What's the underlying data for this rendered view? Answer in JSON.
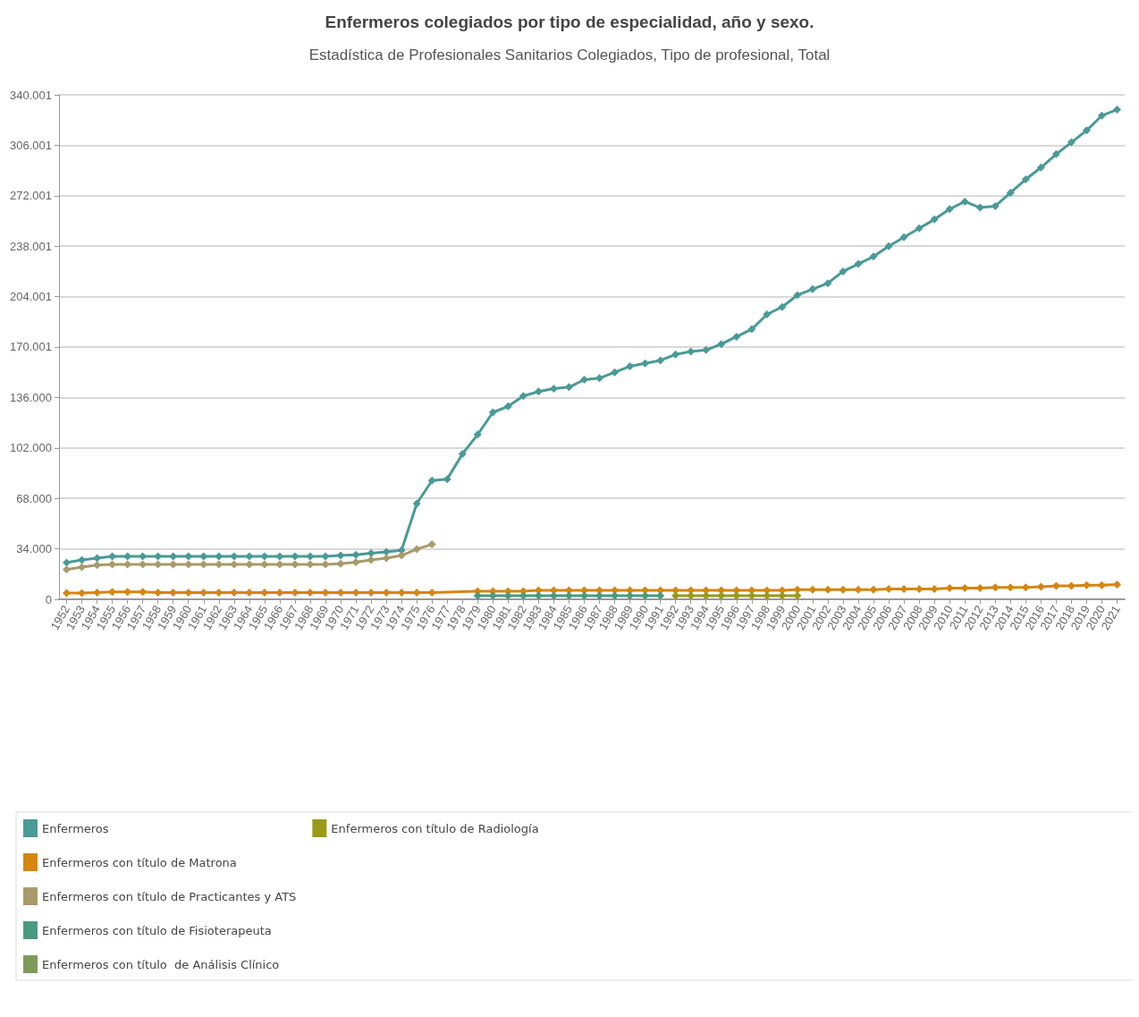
{
  "chart_data": {
    "type": "line",
    "title": "Enfermeros colegiados por tipo de especialidad, año y sexo.",
    "subtitle": "Estadística de Profesionales Sanitarios Colegiados, Tipo de profesional, Total",
    "categories": [
      "1952",
      "1953",
      "1954",
      "1955",
      "1956",
      "1957",
      "1958",
      "1959",
      "1960",
      "1961",
      "1962",
      "1963",
      "1964",
      "1965",
      "1966",
      "1967",
      "1968",
      "1969",
      "1970",
      "1971",
      "1972",
      "1973",
      "1974",
      "1975",
      "1976",
      "1977",
      "1978",
      "1979",
      "1980",
      "1981",
      "1982",
      "1983",
      "1984",
      "1985",
      "1986",
      "1987",
      "1988",
      "1989",
      "1990",
      "1991",
      "1992",
      "1993",
      "1994",
      "1995",
      "1996",
      "1997",
      "1998",
      "1999",
      "2000",
      "2001",
      "2002",
      "2003",
      "2004",
      "2005",
      "2006",
      "2007",
      "2008",
      "2009",
      "2010",
      "2011",
      "2012",
      "2013",
      "2014",
      "2015",
      "2016",
      "2017",
      "2018",
      "2019",
      "2020",
      "2021"
    ],
    "series": [
      {
        "name": "Enfermeros",
        "color": "#4a9a96",
        "values": [
          24700,
          26500,
          27700,
          29000,
          29000,
          29000,
          29000,
          29000,
          29000,
          29000,
          29000,
          29000,
          29000,
          29000,
          29000,
          29000,
          29000,
          29000,
          29500,
          30000,
          31000,
          32000,
          33000,
          64500,
          80000,
          81000,
          98000,
          111000,
          126000,
          130000,
          137000,
          140000,
          142000,
          143000,
          148000,
          149000,
          153000,
          157000,
          159000,
          161000,
          165000,
          167000,
          168000,
          172000,
          177000,
          182000,
          192000,
          197000,
          205000,
          209000,
          213000,
          221000,
          226000,
          231000,
          238000,
          244000,
          250000,
          256000,
          263000,
          268000,
          264000,
          265000,
          274000,
          283000,
          291000,
          300000,
          308000,
          316000,
          326000,
          330000
        ]
      },
      {
        "name": "Enfermeros con título de Matrona",
        "color": "#d4860f",
        "values": [
          4200,
          4200,
          4500,
          5000,
          5000,
          5000,
          4500,
          4500,
          4500,
          4500,
          4500,
          4500,
          4500,
          4500,
          4500,
          4500,
          4500,
          4500,
          4500,
          4500,
          4500,
          4500,
          4500,
          4500,
          4500,
          null,
          null,
          5500,
          5500,
          5500,
          5500,
          6000,
          6000,
          6000,
          6000,
          6000,
          6000,
          6000,
          6000,
          6000,
          6000,
          6000,
          6000,
          6000,
          6000,
          6000,
          6000,
          6000,
          6500,
          6500,
          6500,
          6500,
          6500,
          6500,
          7000,
          7000,
          7000,
          7000,
          7500,
          7500,
          7500,
          8000,
          8000,
          8000,
          8500,
          9000,
          9000,
          9500,
          9500,
          10000
        ]
      },
      {
        "name": "Enfermeros con título de Practicantes y ATS",
        "color": "#a89a6a",
        "values": [
          20000,
          21700,
          23000,
          23500,
          23500,
          23500,
          23500,
          23500,
          23500,
          23500,
          23500,
          23500,
          23500,
          23500,
          23500,
          23500,
          23500,
          23500,
          24000,
          25000,
          26500,
          27700,
          29500,
          33800,
          37000,
          null,
          null,
          null,
          null,
          null,
          null,
          null,
          null,
          null,
          null,
          null,
          null,
          null,
          null,
          null,
          null,
          null,
          null,
          null,
          null,
          null,
          null,
          null,
          null,
          null,
          null,
          null,
          null,
          null,
          null,
          null,
          null,
          null,
          null,
          null,
          null,
          null,
          null,
          null,
          null,
          null,
          null,
          null,
          null,
          null
        ]
      },
      {
        "name": "Enfermeros con título de Fisioterapeuta",
        "color": "#4a9a80",
        "values": [
          null,
          null,
          null,
          null,
          null,
          null,
          null,
          null,
          null,
          null,
          null,
          null,
          null,
          null,
          null,
          null,
          null,
          null,
          null,
          null,
          null,
          null,
          null,
          null,
          null,
          null,
          null,
          2400,
          2400,
          2400,
          2400,
          2400,
          2400,
          2400,
          2400,
          2400,
          2400,
          2400,
          2400,
          2400,
          null,
          null,
          null,
          null,
          null,
          null,
          null,
          null,
          null,
          null,
          null,
          null,
          null,
          null,
          null,
          null,
          null,
          null,
          null,
          null,
          null,
          null,
          null,
          null,
          null,
          null,
          null,
          null,
          null,
          null
        ]
      },
      {
        "name": "Enfermeros con título  de Análisis Clínico",
        "color": "#7d9a5a",
        "values": [
          null,
          null,
          null,
          null,
          null,
          null,
          null,
          null,
          null,
          null,
          null,
          null,
          null,
          null,
          null,
          null,
          null,
          null,
          null,
          null,
          null,
          null,
          null,
          null,
          null,
          null,
          null,
          null,
          null,
          null,
          null,
          null,
          null,
          null,
          null,
          null,
          null,
          null,
          null,
          null,
          null,
          null,
          null,
          null,
          null,
          null,
          null,
          null,
          null,
          null,
          null,
          null,
          null,
          null,
          null,
          null,
          null,
          null,
          null,
          null,
          null,
          null,
          null,
          null,
          null,
          null,
          null,
          null,
          null,
          null
        ]
      },
      {
        "name": "Enfermeros con título de Radiología",
        "color": "#9a9a1a",
        "values": [
          null,
          null,
          null,
          null,
          null,
          null,
          null,
          null,
          null,
          null,
          null,
          null,
          null,
          null,
          null,
          null,
          null,
          null,
          null,
          null,
          null,
          null,
          null,
          null,
          null,
          null,
          null,
          null,
          null,
          null,
          null,
          null,
          null,
          null,
          null,
          null,
          null,
          null,
          null,
          null,
          2400,
          2400,
          2400,
          2400,
          2400,
          2400,
          2400,
          2400,
          2400,
          null,
          null,
          null,
          null,
          null,
          null,
          null,
          null,
          null,
          null,
          null,
          null,
          null,
          null,
          null,
          null,
          null,
          null,
          null,
          null,
          null
        ]
      }
    ],
    "ylim": [
      0,
      340001
    ],
    "yticks": [
      0,
      {
        "value": 34000,
        "label": "34.000"
      },
      {
        "value": 68000,
        "label": "68.000"
      },
      {
        "value": 102000,
        "label": "102.000"
      },
      {
        "value": 136000,
        "label": "136.000"
      },
      {
        "value": 170001,
        "label": "170.001"
      },
      {
        "value": 204001,
        "label": "204.001"
      },
      {
        "value": 238001,
        "label": "238.001"
      },
      {
        "value": 272001,
        "label": "272.001"
      },
      {
        "value": 306001,
        "label": "306.001"
      },
      {
        "value": 340001,
        "label": "340.001"
      }
    ],
    "grid": "y",
    "legend": "bottom left",
    "marker": "diamond",
    "line_style": "solid"
  }
}
